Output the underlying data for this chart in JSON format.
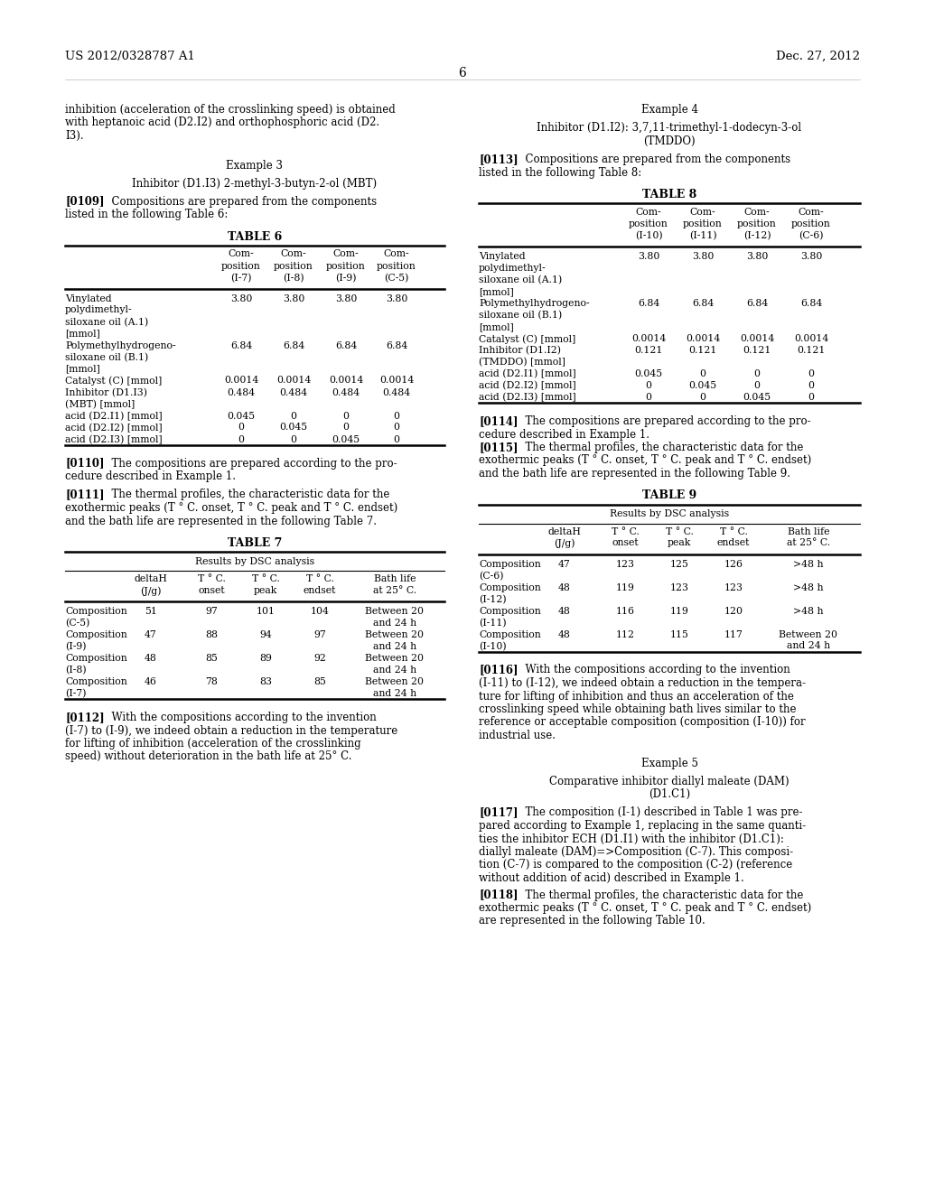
{
  "header_left": "US 2012/0328787 A1",
  "header_right": "Dec. 27, 2012",
  "page_number": "6",
  "bg_color": "#ffffff",
  "text_color": "#000000",
  "left_col": {
    "intro_text": [
      "inhibition (acceleration of the crosslinking speed) is obtained",
      "with heptanoic acid (D2.I2) and orthophosphoric acid (D2.",
      "I3)."
    ],
    "example3_title": "Example 3",
    "example3_subtitle": "Inhibitor (D1.I3) 2-methyl-3-butyn-2-ol (MBT)",
    "para109": [
      "[0109]   Compositions are prepared from the components",
      "listed in the following Table 6:"
    ],
    "table6_title": "TABLE 6",
    "table6_cols": [
      "Com-\nposition\n(I-7)",
      "Com-\nposition\n(I-8)",
      "Com-\nposition\n(I-9)",
      "Com-\nposition\n(C-5)"
    ],
    "table6_rows": [
      [
        "Vinylated",
        "3.80",
        "3.80",
        "3.80",
        "3.80"
      ],
      [
        "polydimethyl-",
        "",
        "",
        "",
        ""
      ],
      [
        "siloxane oil (A.1)",
        "",
        "",
        "",
        ""
      ],
      [
        "[mmol]",
        "",
        "",
        "",
        ""
      ],
      [
        "Polymethylhydrogeno-",
        "6.84",
        "6.84",
        "6.84",
        "6.84"
      ],
      [
        "siloxane oil (B.1)",
        "",
        "",
        "",
        ""
      ],
      [
        "[mmol]",
        "",
        "",
        "",
        ""
      ],
      [
        "Catalyst (C) [mmol]",
        "0.0014",
        "0.0014",
        "0.0014",
        "0.0014"
      ],
      [
        "Inhibitor (D1.I3)",
        "0.484",
        "0.484",
        "0.484",
        "0.484"
      ],
      [
        "(MBT) [mmol]",
        "",
        "",
        "",
        ""
      ],
      [
        "acid (D2.I1) [mmol]",
        "0.045",
        "0",
        "0",
        "0"
      ],
      [
        "acid (D2.I2) [mmol]",
        "0",
        "0.045",
        "0",
        "0"
      ],
      [
        "acid (D2.I3) [mmol]",
        "0",
        "0",
        "0.045",
        "0"
      ]
    ],
    "para110": [
      "[0110]   The compositions are prepared according to the pro-",
      "cedure described in Example 1."
    ],
    "para111": [
      "[0111]   The thermal profiles, the characteristic data for the",
      "exothermic peaks (T ° C. onset, T ° C. peak and T ° C. endset)",
      "and the bath life are represented in the following Table 7."
    ],
    "table7_title": "TABLE 7",
    "table7_subtitle": "Results by DSC analysis",
    "table7_cols": [
      "deltaH\n(J/g)",
      "T ° C.\nonset",
      "T ° C.\npeak",
      "T ° C.\nendset",
      "Bath life\nat 25° C."
    ],
    "table7_rows": [
      [
        "Composition",
        "51",
        "97",
        "101",
        "104",
        "Between 20"
      ],
      [
        "(C-5)",
        "",
        "",
        "",
        "",
        "and 24 h"
      ],
      [
        "Composition",
        "47",
        "88",
        "94",
        "97",
        "Between 20"
      ],
      [
        "(I-9)",
        "",
        "",
        "",
        "",
        "and 24 h"
      ],
      [
        "Composition",
        "48",
        "85",
        "89",
        "92",
        "Between 20"
      ],
      [
        "(I-8)",
        "",
        "",
        "",
        "",
        "and 24 h"
      ],
      [
        "Composition",
        "46",
        "78",
        "83",
        "85",
        "Between 20"
      ],
      [
        "(I-7)",
        "",
        "",
        "",
        "",
        "and 24 h"
      ]
    ],
    "para112": [
      "[0112]   With the compositions according to the invention",
      "(I-7) to (I-9), we indeed obtain a reduction in the temperature",
      "for lifting of inhibition (acceleration of the crosslinking",
      "speed) without deterioration in the bath life at 25° C."
    ]
  },
  "right_col": {
    "example4_title": "Example 4",
    "example4_subtitle": [
      "Inhibitor (D1.I2): 3,7,11-trimethyl-1-dodecyn-3-ol",
      "(TMDDO)"
    ],
    "para113": [
      "[0113]   Compositions are prepared from the components",
      "listed in the following Table 8:"
    ],
    "table8_title": "TABLE 8",
    "table8_cols": [
      "Com-\nposition\n(I-10)",
      "Com-\nposition\n(I-11)",
      "Com-\nposition\n(I-12)",
      "Com-\nposition\n(C-6)"
    ],
    "table8_rows": [
      [
        "Vinylated",
        "3.80",
        "3.80",
        "3.80",
        "3.80"
      ],
      [
        "polydimethyl-",
        "",
        "",
        "",
        ""
      ],
      [
        "siloxane oil (A.1)",
        "",
        "",
        "",
        ""
      ],
      [
        "[mmol]",
        "",
        "",
        "",
        ""
      ],
      [
        "Polymethylhydrogeno-",
        "6.84",
        "6.84",
        "6.84",
        "6.84"
      ],
      [
        "siloxane oil (B.1)",
        "",
        "",
        "",
        ""
      ],
      [
        "[mmol]",
        "",
        "",
        "",
        ""
      ],
      [
        "Catalyst (C) [mmol]",
        "0.0014",
        "0.0014",
        "0.0014",
        "0.0014"
      ],
      [
        "Inhibitor (D1.I2)",
        "0.121",
        "0.121",
        "0.121",
        "0.121"
      ],
      [
        "(TMDDO) [mmol]",
        "",
        "",
        "",
        ""
      ],
      [
        "acid (D2.I1) [mmol]",
        "0.045",
        "0",
        "0",
        "0"
      ],
      [
        "acid (D2.I2) [mmol]",
        "0",
        "0.045",
        "0",
        "0"
      ],
      [
        "acid (D2.I3) [mmol]",
        "0",
        "0",
        "0.045",
        "0"
      ]
    ],
    "para114": [
      "[0114]   The compositions are prepared according to the pro-",
      "cedure described in Example 1."
    ],
    "para115": [
      "[0115]   The thermal profiles, the characteristic data for the",
      "exothermic peaks (T ° C. onset, T ° C. peak and T ° C. endset)",
      "and the bath life are represented in the following Table 9."
    ],
    "table9_title": "TABLE 9",
    "table9_subtitle": "Results by DSC analysis",
    "table9_cols": [
      "deltaH\n(J/g)",
      "T ° C.\nonset",
      "T ° C.\npeak",
      "T ° C.\nendset",
      "Bath life\nat 25° C."
    ],
    "table9_rows": [
      [
        "Composition",
        "47",
        "123",
        "125",
        "126",
        ">48 h"
      ],
      [
        "(C-6)",
        "",
        "",
        "",
        "",
        ""
      ],
      [
        "Composition",
        "48",
        "119",
        "123",
        "123",
        ">48 h"
      ],
      [
        "(I-12)",
        "",
        "",
        "",
        "",
        ""
      ],
      [
        "Composition",
        "48",
        "116",
        "119",
        "120",
        ">48 h"
      ],
      [
        "(I-11)",
        "",
        "",
        "",
        "",
        ""
      ],
      [
        "Composition",
        "48",
        "112",
        "115",
        "117",
        "Between 20"
      ],
      [
        "(I-10)",
        "",
        "",
        "",
        "",
        "and 24 h"
      ]
    ],
    "para116": [
      "[0116]   With the compositions according to the invention",
      "(I-11) to (I-12), we indeed obtain a reduction in the tempera-",
      "ture for lifting of inhibition and thus an acceleration of the",
      "crosslinking speed while obtaining bath lives similar to the",
      "reference or acceptable composition (composition (I-10)) for",
      "industrial use."
    ],
    "example5_title": "Example 5",
    "example5_subtitle": [
      "Comparative inhibitor diallyl maleate (DAM)",
      "(D1.C1)"
    ],
    "para117": [
      "[0117]   The composition (I-1) described in Table 1 was pre-",
      "pared according to Example 1, replacing in the same quanti-",
      "ties the inhibitor ECH (D1.I1) with the inhibitor (D1.C1):",
      "diallyl maleate (DAM)=>Composition (C-7). This composi-",
      "tion (C-7) is compared to the composition (C-2) (reference",
      "without addition of acid) described in Example 1."
    ],
    "para118": [
      "[0118]   The thermal profiles, the characteristic data for the",
      "exothermic peaks (T ° C. onset, T ° C. peak and T ° C. endset)",
      "are represented in the following Table 10."
    ]
  }
}
